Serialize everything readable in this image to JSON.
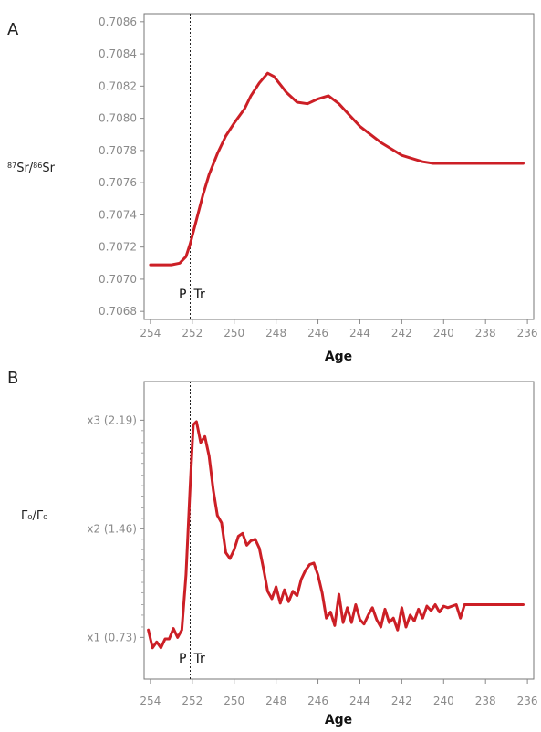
{
  "chart_data": [
    {
      "panel": "A",
      "type": "line",
      "xlabel": "Age",
      "ylabel": "87Sr/86Sr",
      "xlim": [
        254.3,
        235.7
      ],
      "ylim": [
        0.70675,
        0.70865
      ],
      "x_ticks": [
        254,
        252,
        250,
        248,
        246,
        244,
        242,
        240,
        238,
        236
      ],
      "x_tick_labels": [
        "254",
        "252",
        "250",
        "248",
        "246",
        "244",
        "242",
        "240",
        "238",
        "236"
      ],
      "y_ticks": [
        0.7068,
        0.707,
        0.7072,
        0.7074,
        0.7076,
        0.7078,
        0.708,
        0.7082,
        0.7084,
        0.7086
      ],
      "y_tick_labels": [
        "0.7068",
        "0.7070",
        "0.7072",
        "0.7074",
        "0.7076",
        "0.7078",
        "0.7080",
        "0.7082",
        "0.7084",
        "0.7086"
      ],
      "boundary": {
        "x": 252.1,
        "left_label": "P",
        "right_label": "Tr"
      },
      "grid": false,
      "series": [
        {
          "color": "#cc1f26",
          "x": [
            254,
            253.5,
            253,
            252.6,
            252.3,
            252.1,
            251.8,
            251.5,
            251.2,
            250.8,
            250.4,
            250,
            249.5,
            249.2,
            248.8,
            248.4,
            248.1,
            247.8,
            247.5,
            247,
            246.5,
            246,
            245.5,
            245,
            244.5,
            244,
            243.5,
            243,
            242.5,
            242,
            241.5,
            241,
            240.5,
            240,
            239.5,
            239,
            238.5,
            238,
            237.5,
            237,
            236.5,
            236.2
          ],
          "y": [
            0.70709,
            0.70709,
            0.70709,
            0.7071,
            0.70714,
            0.70722,
            0.70737,
            0.70752,
            0.70765,
            0.70778,
            0.70789,
            0.70797,
            0.70806,
            0.70814,
            0.70822,
            0.70828,
            0.70826,
            0.70821,
            0.70816,
            0.7081,
            0.70809,
            0.70812,
            0.70814,
            0.70809,
            0.70802,
            0.70795,
            0.7079,
            0.70785,
            0.70781,
            0.70777,
            0.70775,
            0.70773,
            0.70772,
            0.70772,
            0.70772,
            0.70772,
            0.70772,
            0.70772,
            0.70772,
            0.70772,
            0.70772,
            0.70772
          ]
        }
      ]
    },
    {
      "panel": "B",
      "type": "line",
      "xlabel": "Age",
      "ylabel": "Γ₀/Γ₀",
      "xlim": [
        254.3,
        235.7
      ],
      "ylim": [
        0.45,
        2.45
      ],
      "x_ticks": [
        254,
        252,
        250,
        248,
        246,
        244,
        242,
        240,
        238,
        236
      ],
      "x_tick_labels": [
        "254",
        "252",
        "250",
        "248",
        "246",
        "244",
        "242",
        "240",
        "238",
        "236"
      ],
      "y_ticks": [
        0.73,
        1.46,
        2.19
      ],
      "y_tick_labels": [
        "x1 (0.73)",
        "x2 (1.46)",
        "x3 (2.19)"
      ],
      "y_minor_ticks": [
        0.8,
        0.88,
        0.95,
        1.03,
        1.1,
        1.18,
        1.25,
        1.32,
        1.39,
        1.53,
        1.6,
        1.68,
        1.75,
        1.82,
        1.9,
        1.97,
        2.04,
        2.12
      ],
      "boundary": {
        "x": 252.1,
        "left_label": "P",
        "right_label": "Tr"
      },
      "grid": false,
      "series": [
        {
          "color": "#cc1f26",
          "x": [
            254.1,
            253.9,
            253.7,
            253.5,
            253.3,
            253.1,
            252.9,
            252.7,
            252.5,
            252.3,
            252.1,
            251.95,
            251.8,
            251.6,
            251.4,
            251.2,
            251.0,
            250.8,
            250.6,
            250.4,
            250.2,
            250.0,
            249.8,
            249.6,
            249.4,
            249.2,
            249.0,
            248.8,
            248.6,
            248.4,
            248.2,
            248.0,
            247.8,
            247.6,
            247.4,
            247.2,
            247.0,
            246.8,
            246.6,
            246.4,
            246.2,
            246.0,
            245.8,
            245.6,
            245.4,
            245.2,
            245.0,
            244.8,
            244.6,
            244.4,
            244.2,
            244.0,
            243.8,
            243.6,
            243.4,
            243.2,
            243.0,
            242.8,
            242.6,
            242.4,
            242.2,
            242.0,
            241.8,
            241.6,
            241.4,
            241.2,
            241.0,
            240.8,
            240.6,
            240.4,
            240.2,
            240.0,
            239.8,
            239.6,
            239.4,
            239.2,
            239.0,
            238.5,
            238.0,
            237.5,
            237.0,
            236.5,
            236.2
          ],
          "y": [
            0.78,
            0.66,
            0.7,
            0.66,
            0.72,
            0.72,
            0.79,
            0.73,
            0.78,
            1.15,
            1.75,
            2.16,
            2.18,
            2.04,
            2.08,
            1.95,
            1.72,
            1.55,
            1.5,
            1.3,
            1.26,
            1.32,
            1.41,
            1.43,
            1.35,
            1.38,
            1.39,
            1.33,
            1.19,
            1.04,
            0.99,
            1.07,
            0.96,
            1.05,
            0.97,
            1.04,
            1.01,
            1.12,
            1.18,
            1.22,
            1.23,
            1.15,
            1.03,
            0.86,
            0.9,
            0.81,
            1.02,
            0.83,
            0.93,
            0.83,
            0.95,
            0.85,
            0.82,
            0.88,
            0.93,
            0.85,
            0.8,
            0.92,
            0.83,
            0.86,
            0.78,
            0.93,
            0.8,
            0.88,
            0.84,
            0.92,
            0.86,
            0.94,
            0.91,
            0.95,
            0.9,
            0.94,
            0.93,
            0.94,
            0.95,
            0.86,
            0.95,
            0.95,
            0.95,
            0.95,
            0.95,
            0.95,
            0.95
          ]
        }
      ]
    }
  ]
}
